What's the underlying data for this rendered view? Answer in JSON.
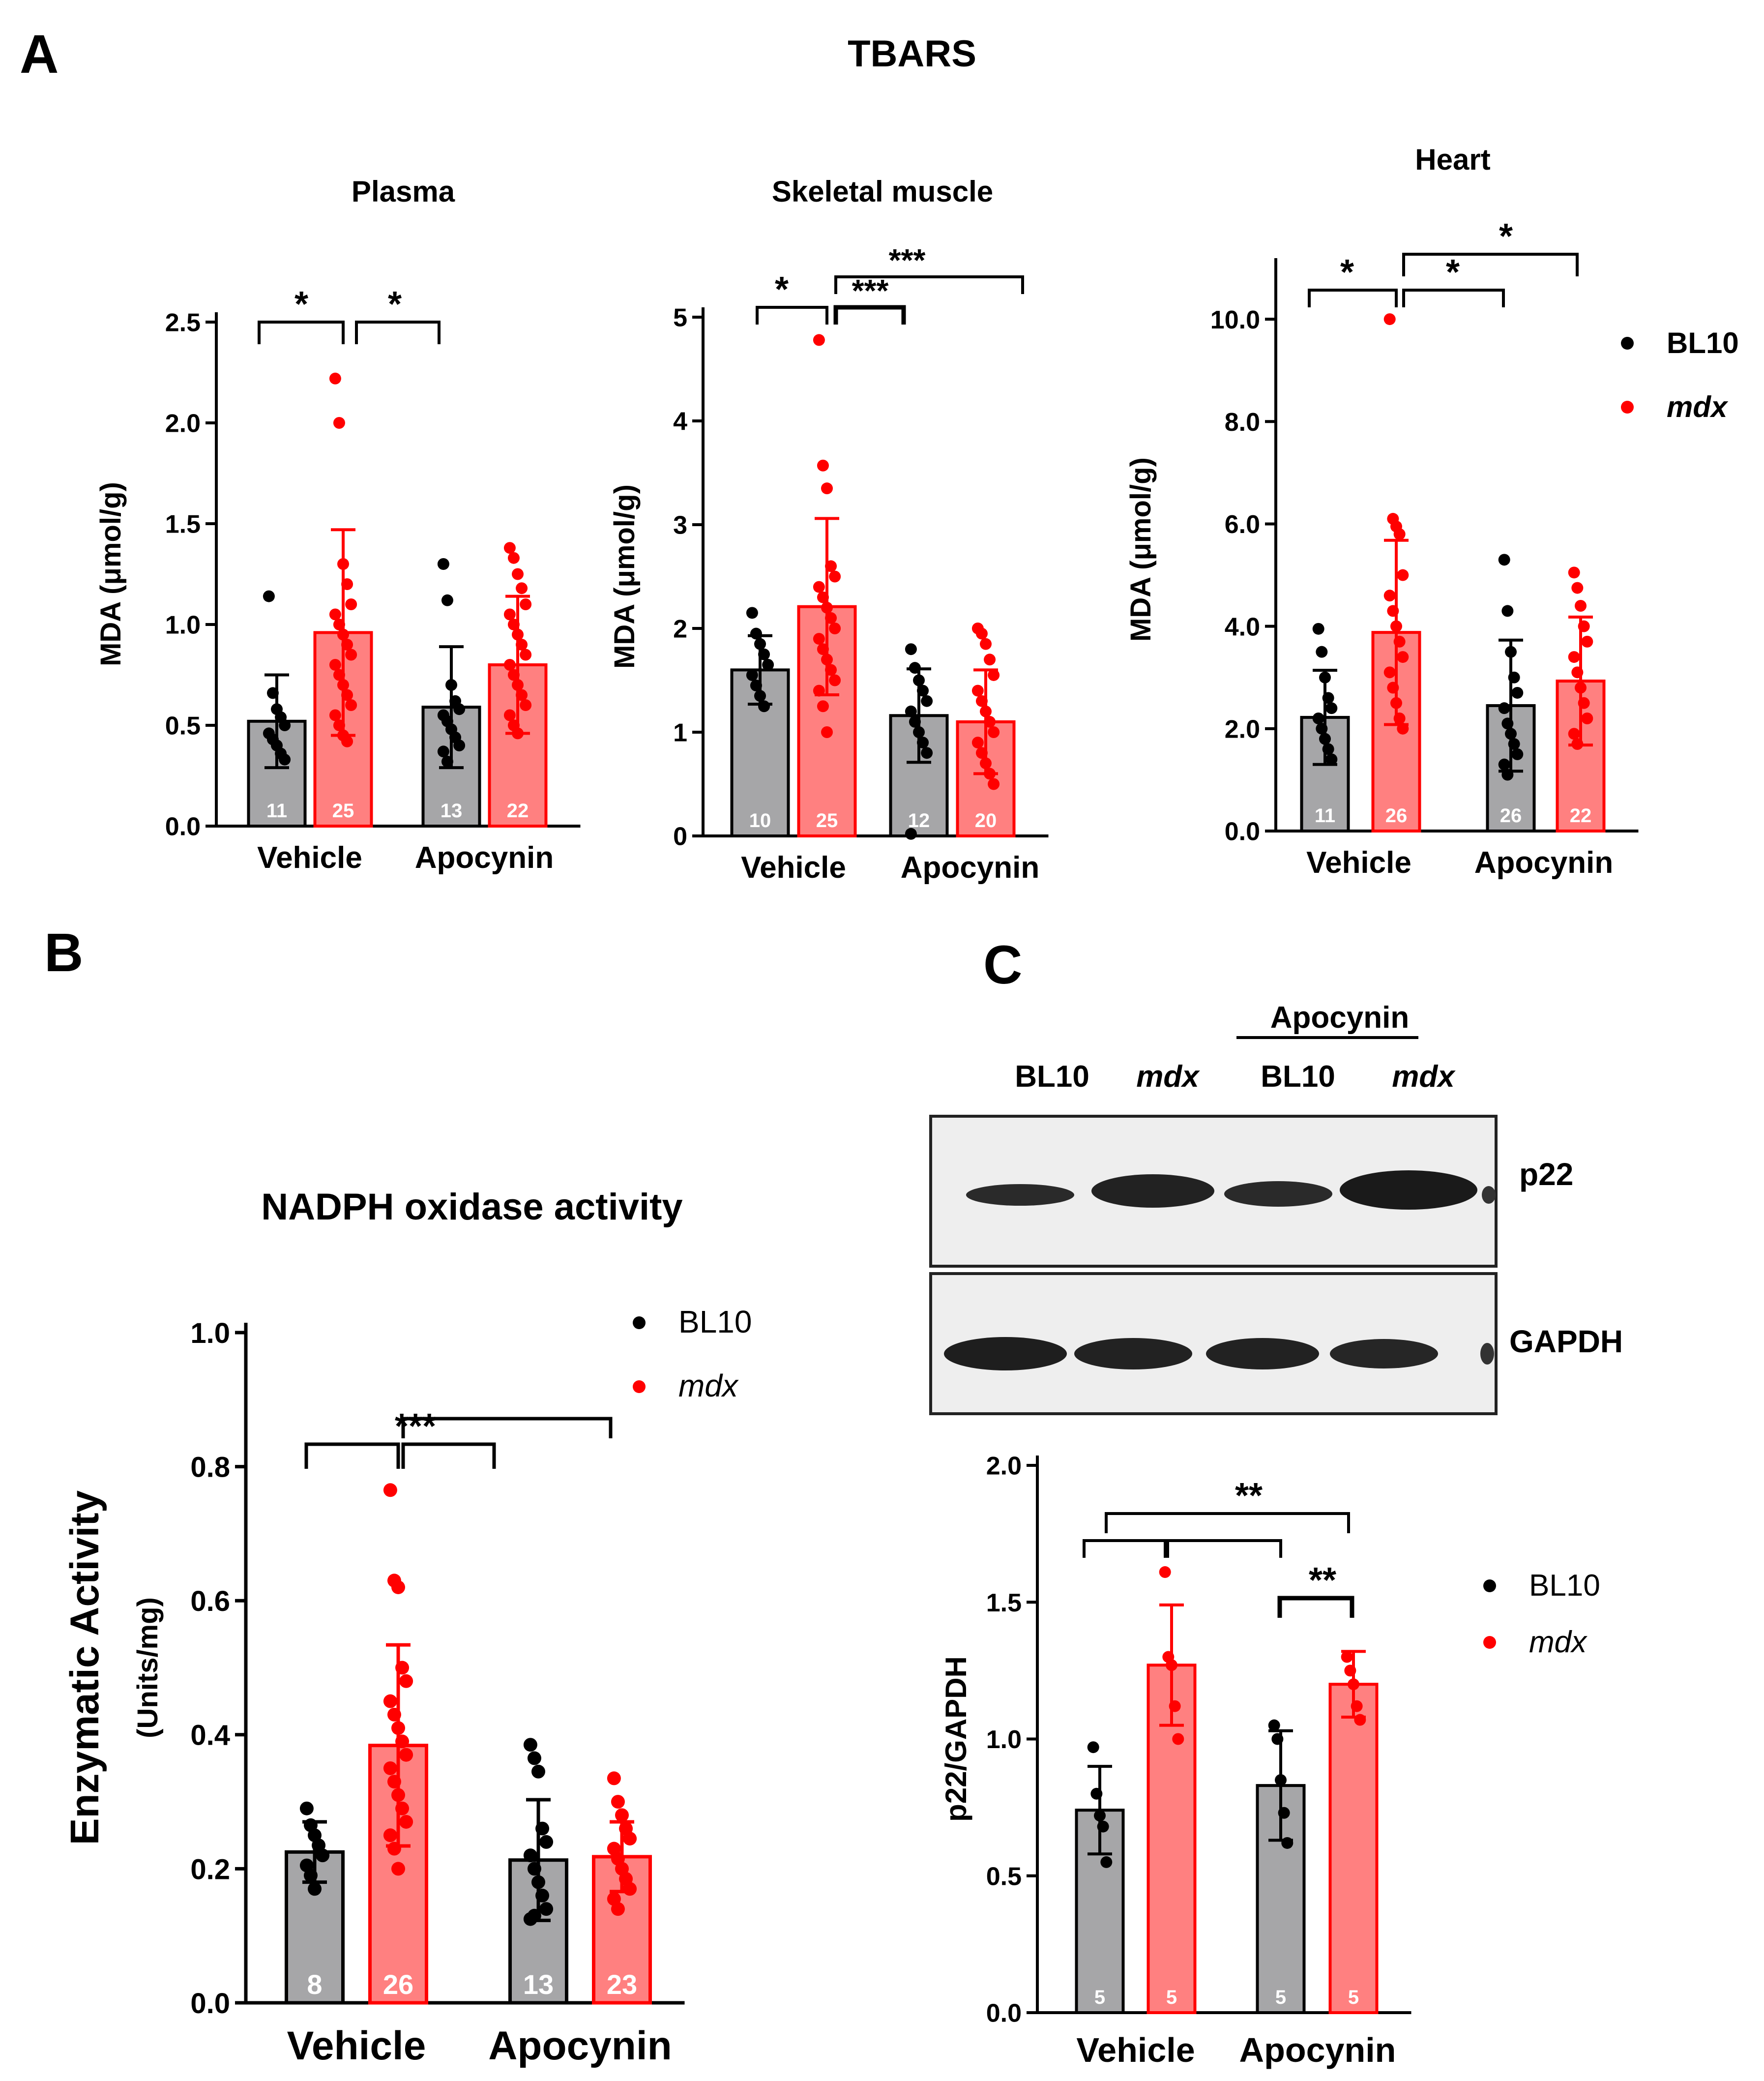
{
  "panel_letters": [
    "A",
    "B",
    "C"
  ],
  "tbars_title": "TBARS",
  "nadph_title": "NADPH oxidase activity",
  "colors": {
    "bl10_fill": "#a6a6a8",
    "mdx_fill": "#ff8080",
    "bl10_dot": "#000000",
    "mdx_dot": "#ff0000",
    "mdx_edge": "#ff0000",
    "bl10_edge": "#000000"
  },
  "blot": {
    "apocynin_label": "Apocynin",
    "lane_labels": [
      "BL10",
      "mdx",
      "BL10",
      "mdx"
    ],
    "p22_label": "p22",
    "gapdh_label": "GAPDH"
  },
  "chart_data": [
    {
      "id": "plasma",
      "type": "bar",
      "title": "Plasma",
      "ylabel": "MDA (μmol/g)",
      "categories": [
        "Vehicle",
        "Apocynin"
      ],
      "ylim": [
        0,
        2.5
      ],
      "yticks": [
        "0.0",
        "0.5",
        "1.0",
        "1.5",
        "2.0",
        "2.5"
      ],
      "series": [
        {
          "name": "BL10",
          "values": [
            0.52,
            0.59
          ],
          "sd": [
            0.23,
            0.3
          ],
          "n": [
            "11",
            "13"
          ],
          "points": [
            [
              1.14,
              0.66,
              0.58,
              0.54,
              0.5,
              0.46,
              0.43,
              0.4,
              0.36,
              0.33
            ],
            [
              1.3,
              1.12,
              0.7,
              0.62,
              0.58,
              0.55,
              0.52,
              0.48,
              0.44,
              0.4,
              0.37,
              0.32
            ]
          ]
        },
        {
          "name": "mdx",
          "values": [
            0.96,
            0.8
          ],
          "sd": [
            0.51,
            0.34
          ],
          "n": [
            "25",
            "22"
          ],
          "points": [
            [
              2.22,
              2.0,
              1.3,
              1.2,
              1.1,
              1.05,
              1.0,
              0.95,
              0.9,
              0.85,
              0.8,
              0.75,
              0.7,
              0.65,
              0.6,
              0.55,
              0.5,
              0.45,
              0.42
            ],
            [
              1.38,
              1.33,
              1.25,
              1.18,
              1.1,
              1.05,
              1.0,
              0.95,
              0.9,
              0.85,
              0.8,
              0.75,
              0.7,
              0.65,
              0.6,
              0.55,
              0.5,
              0.46
            ]
          ]
        }
      ],
      "sig": [
        "*",
        "*"
      ]
    },
    {
      "id": "skeletal",
      "type": "bar",
      "title": "Skeletal muscle",
      "ylabel": "MDA (μmol/g)",
      "categories": [
        "Vehicle",
        "Apocynin"
      ],
      "ylim": [
        0,
        5
      ],
      "yticks": [
        "0",
        "1",
        "2",
        "3",
        "4",
        "5"
      ],
      "series": [
        {
          "name": "BL10",
          "values": [
            1.6,
            1.16
          ],
          "sd": [
            0.33,
            0.45
          ],
          "n": [
            "10",
            "12"
          ],
          "points": [
            [
              2.15,
              1.95,
              1.85,
              1.75,
              1.65,
              1.55,
              1.45,
              1.35,
              1.25
            ],
            [
              1.8,
              1.62,
              1.5,
              1.4,
              1.3,
              1.2,
              1.1,
              1.0,
              0.9,
              0.8,
              0.02
            ]
          ]
        },
        {
          "name": "mdx",
          "values": [
            2.21,
            1.1
          ],
          "sd": [
            0.85,
            0.5
          ],
          "n": [
            "25",
            "20"
          ],
          "points": [
            [
              4.78,
              3.57,
              3.35,
              2.6,
              2.5,
              2.4,
              2.3,
              2.2,
              2.1,
              2.0,
              1.9,
              1.8,
              1.7,
              1.6,
              1.5,
              1.4,
              1.25,
              1.0
            ],
            [
              2.0,
              1.95,
              1.85,
              1.7,
              1.55,
              1.4,
              1.3,
              1.2,
              1.1,
              1.0,
              0.9,
              0.8,
              0.7,
              0.6,
              0.5
            ]
          ]
        }
      ],
      "sig": [
        "*",
        "***",
        "***"
      ]
    },
    {
      "id": "heart",
      "type": "bar",
      "title": "Heart",
      "ylabel": "MDA (μmol/g)",
      "categories": [
        "Vehicle",
        "Apocynin"
      ],
      "ylim": [
        0,
        11
      ],
      "yticks": [
        "0.0",
        "2.0",
        "4.0",
        "6.0",
        "8.0",
        "10.0"
      ],
      "legend": [
        "BL10",
        "mdx"
      ],
      "series": [
        {
          "name": "BL10",
          "values": [
            2.22,
            2.45
          ],
          "sd": [
            0.92,
            1.28
          ],
          "n": [
            "11",
            "26"
          ],
          "points": [
            [
              3.95,
              3.5,
              3.0,
              2.6,
              2.4,
              2.2,
              2.0,
              1.8,
              1.6,
              1.4
            ],
            [
              5.3,
              4.3,
              3.5,
              3.0,
              2.7,
              2.4,
              2.1,
              1.9,
              1.7,
              1.5,
              1.3,
              1.1
            ]
          ]
        },
        {
          "name": "mdx",
          "values": [
            3.88,
            2.93
          ],
          "sd": [
            1.8,
            1.25
          ],
          "n": [
            "26",
            "22"
          ],
          "points": [
            [
              10.0,
              6.1,
              5.95,
              5.8,
              5.0,
              4.6,
              4.3,
              4.0,
              3.7,
              3.4,
              3.1,
              2.8,
              2.5,
              2.2,
              2.0
            ],
            [
              5.05,
              4.75,
              4.4,
              4.0,
              3.7,
              3.4,
              3.1,
              2.8,
              2.5,
              2.2,
              1.9,
              1.7
            ]
          ]
        }
      ],
      "sig": [
        "*",
        "*",
        "*"
      ]
    },
    {
      "id": "nadph",
      "type": "bar",
      "title": "",
      "ylabel": "Enzymatic Activity",
      "ylabel2": "(Units/mg)",
      "categories": [
        "Vehicle",
        "Apocynin"
      ],
      "ylim": [
        0,
        1.0
      ],
      "yticks": [
        "0.0",
        "0.2",
        "0.4",
        "0.6",
        "0.8",
        "1.0"
      ],
      "legend": [
        "BL10",
        "mdx"
      ],
      "series": [
        {
          "name": "BL10",
          "values": [
            0.225,
            0.213
          ],
          "sd": [
            0.045,
            0.09
          ],
          "n": [
            "8",
            "13"
          ],
          "points": [
            [
              0.29,
              0.265,
              0.25,
              0.235,
              0.22,
              0.205,
              0.19,
              0.17
            ],
            [
              0.385,
              0.365,
              0.345,
              0.26,
              0.24,
              0.22,
              0.2,
              0.18,
              0.16,
              0.14,
              0.125,
              0.13
            ]
          ]
        },
        {
          "name": "mdx",
          "values": [
            0.384,
            0.218
          ],
          "sd": [
            0.15,
            0.052
          ],
          "n": [
            "26",
            "23"
          ],
          "points": [
            [
              0.765,
              0.63,
              0.62,
              0.5,
              0.48,
              0.45,
              0.43,
              0.41,
              0.39,
              0.37,
              0.35,
              0.33,
              0.31,
              0.29,
              0.27,
              0.25,
              0.23,
              0.2
            ],
            [
              0.335,
              0.3,
              0.28,
              0.26,
              0.245,
              0.23,
              0.215,
              0.2,
              0.185,
              0.17,
              0.155,
              0.14
            ]
          ]
        }
      ],
      "sig": [
        "***"
      ]
    },
    {
      "id": "p22",
      "type": "bar",
      "title": "",
      "ylabel": "p22/GAPDH",
      "categories": [
        "Vehicle",
        "Apocynin"
      ],
      "ylim": [
        0,
        2.0
      ],
      "yticks": [
        "0.0",
        "0.5",
        "1.0",
        "1.5",
        "2.0"
      ],
      "legend": [
        "BL10",
        "mdx"
      ],
      "series": [
        {
          "name": "BL10",
          "values": [
            0.74,
            0.83
          ],
          "sd": [
            0.16,
            0.2
          ],
          "n": [
            "5",
            "5"
          ],
          "points": [
            [
              0.97,
              0.8,
              0.72,
              0.68,
              0.55
            ],
            [
              1.05,
              1.0,
              0.85,
              0.73,
              0.62
            ]
          ]
        },
        {
          "name": "mdx",
          "values": [
            1.27,
            1.2
          ],
          "sd": [
            0.22,
            0.12
          ],
          "n": [
            "5",
            "5"
          ],
          "points": [
            [
              1.61,
              1.3,
              1.27,
              1.12,
              1.0
            ],
            [
              1.3,
              1.25,
              1.2,
              1.12,
              1.07
            ]
          ]
        }
      ],
      "sig": [
        "**",
        "**"
      ]
    }
  ]
}
